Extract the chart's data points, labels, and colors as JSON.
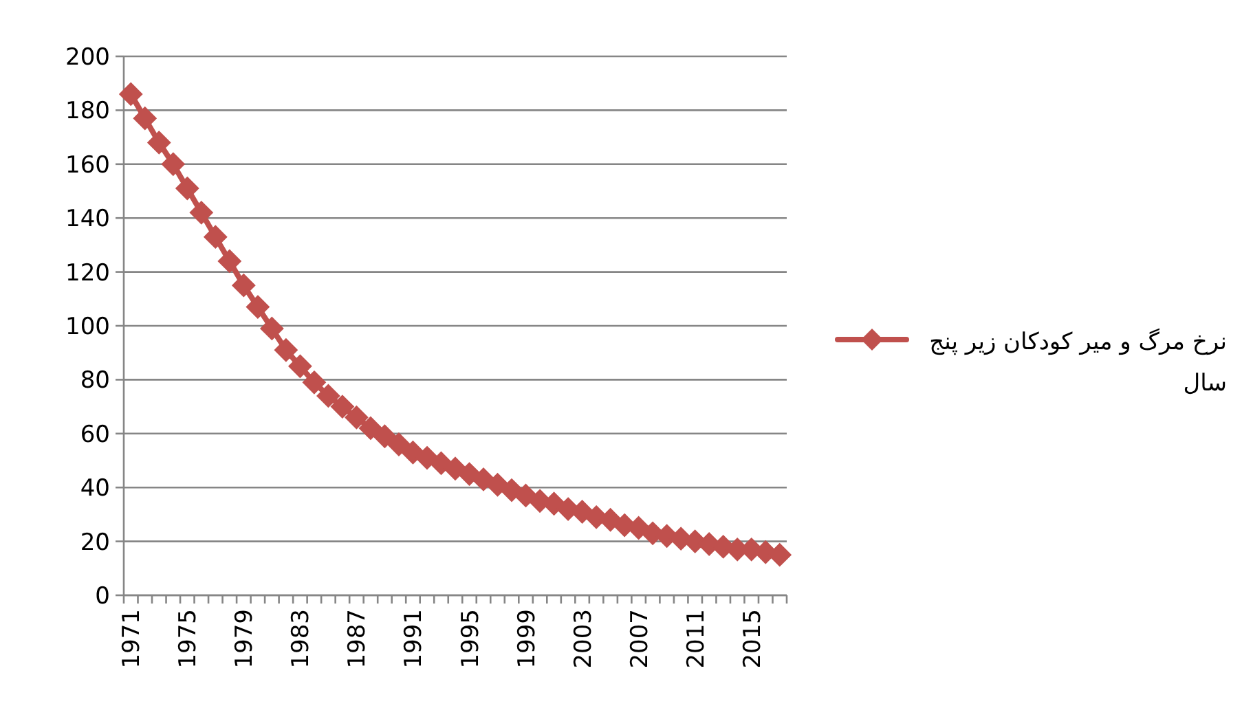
{
  "chart_data": {
    "type": "line",
    "categories": [
      "1971",
      null,
      null,
      null,
      "1975",
      null,
      null,
      null,
      "1979",
      null,
      null,
      null,
      "1983",
      null,
      null,
      null,
      "1987",
      null,
      null,
      null,
      "1991",
      null,
      null,
      null,
      "1995",
      null,
      null,
      null,
      "1999",
      null,
      null,
      null,
      "2003",
      null,
      null,
      null,
      "2007",
      null,
      null,
      null,
      "2011",
      null,
      null,
      null,
      "2015",
      null,
      null
    ],
    "series": [
      {
        "name": "نرخ مرگ و میر کودکان زیر پنج سال",
        "color": "#c0504d",
        "values": [
          186,
          177,
          168,
          160,
          151,
          142,
          133,
          124,
          115,
          107,
          99,
          91,
          85,
          79,
          74,
          70,
          66,
          62,
          59,
          56,
          53,
          51,
          49,
          47,
          45,
          43,
          41,
          39,
          37,
          35,
          34,
          32,
          31,
          29,
          28,
          26,
          25,
          23,
          22,
          21,
          20,
          19,
          18,
          17,
          17,
          16,
          15
        ]
      }
    ],
    "ylim": [
      0,
      200
    ],
    "yticks": [
      0,
      20,
      40,
      60,
      80,
      100,
      120,
      140,
      160,
      180,
      200
    ],
    "grid": "y",
    "legend": "right",
    "marker": "diamond",
    "line_style": "solid"
  }
}
